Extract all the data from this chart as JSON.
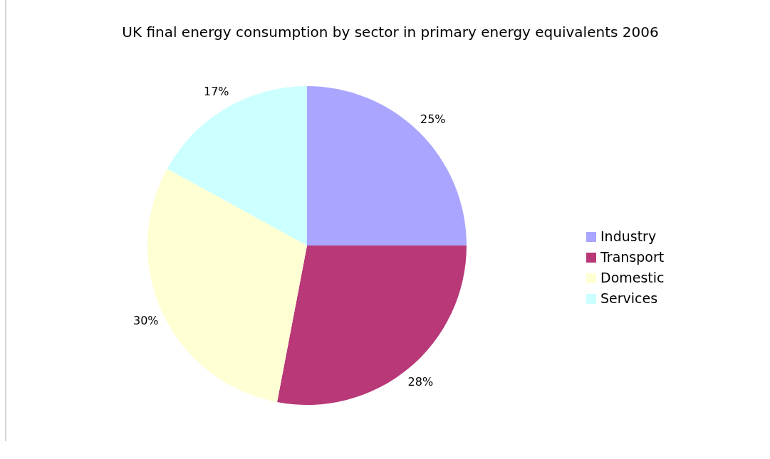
{
  "chart_data": {
    "type": "pie",
    "title": "UK final energy consumption by sector in primary energy equivalents 2006",
    "categories": [
      "Industry",
      "Transport",
      "Domestic",
      "Services"
    ],
    "values": [
      25,
      28,
      30,
      17
    ],
    "value_labels": [
      "25%",
      "28%",
      "30%",
      "17%"
    ],
    "colors": [
      "#aaa6ff",
      "#b83878",
      "#ffffd4",
      "#ccffff"
    ],
    "legend": "right"
  }
}
